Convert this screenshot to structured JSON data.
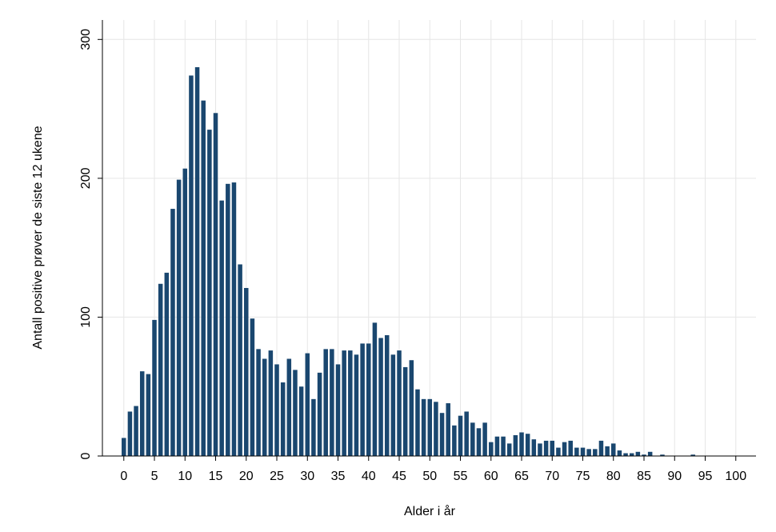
{
  "chart_data": {
    "type": "bar",
    "x_label": "Alder i år",
    "y_label": "Antall positive prøver de siste 12 ukene",
    "x": [
      0,
      1,
      2,
      3,
      4,
      5,
      6,
      7,
      8,
      9,
      10,
      11,
      12,
      13,
      14,
      15,
      16,
      17,
      18,
      19,
      20,
      21,
      22,
      23,
      24,
      25,
      26,
      27,
      28,
      29,
      30,
      31,
      32,
      33,
      34,
      35,
      36,
      37,
      38,
      39,
      40,
      41,
      42,
      43,
      44,
      45,
      46,
      47,
      48,
      49,
      50,
      51,
      52,
      53,
      54,
      55,
      56,
      57,
      58,
      59,
      60,
      61,
      62,
      63,
      64,
      65,
      66,
      67,
      68,
      69,
      70,
      71,
      72,
      73,
      74,
      75,
      76,
      77,
      78,
      79,
      80,
      81,
      82,
      83,
      84,
      85,
      86,
      87,
      88,
      89,
      90,
      91,
      92,
      93,
      94,
      95,
      96,
      97,
      98,
      99,
      100
    ],
    "values": [
      13,
      32,
      36,
      61,
      59,
      98,
      124,
      132,
      178,
      199,
      207,
      274,
      280,
      256,
      235,
      247,
      184,
      196,
      197,
      138,
      121,
      99,
      77,
      70,
      76,
      66,
      53,
      70,
      62,
      50,
      74,
      41,
      60,
      77,
      77,
      66,
      76,
      76,
      73,
      81,
      81,
      96,
      85,
      87,
      73,
      76,
      64,
      69,
      48,
      41,
      41,
      39,
      31,
      38,
      22,
      29,
      32,
      24,
      20,
      24,
      10,
      14,
      14,
      9,
      15,
      17,
      16,
      12,
      9,
      11,
      11,
      6,
      10,
      11,
      6,
      6,
      5,
      5,
      11,
      7,
      9,
      4,
      2,
      2,
      3,
      1,
      3,
      0,
      1,
      0,
      0,
      0,
      0,
      1,
      0,
      0,
      0,
      0,
      0,
      0,
      0
    ],
    "color": "#1a476f",
    "xlim": [
      -3.5,
      103.3
    ],
    "ylim": [
      0,
      314
    ],
    "xticks": [
      0,
      5,
      10,
      15,
      20,
      25,
      30,
      35,
      40,
      45,
      50,
      55,
      60,
      65,
      70,
      75,
      80,
      85,
      90,
      95,
      100
    ],
    "yticks": [
      0,
      100,
      200,
      300
    ],
    "grid": true
  }
}
